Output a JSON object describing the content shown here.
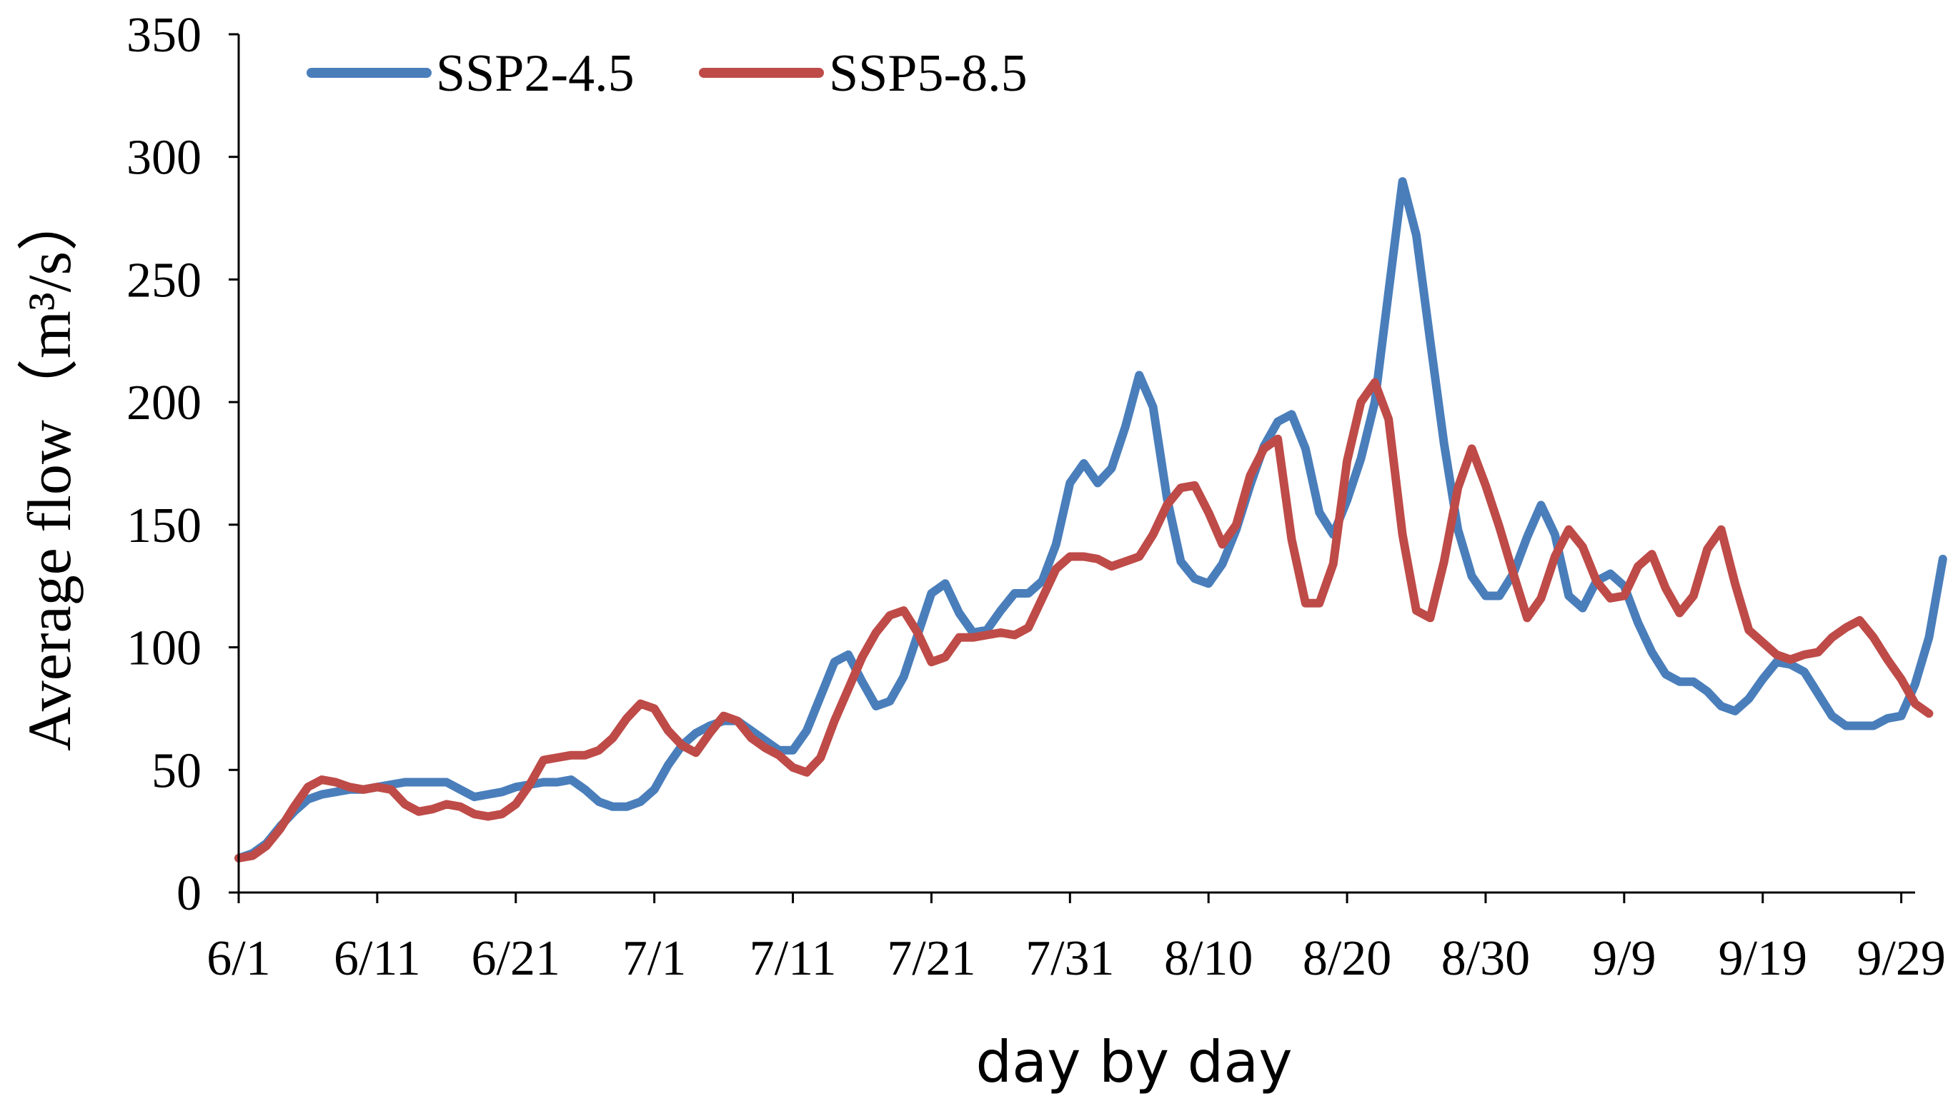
{
  "chart_data": {
    "type": "line",
    "title": "",
    "xlabel": "day by day",
    "ylabel": "Average flow（m³/s）",
    "ylim": [
      0,
      350
    ],
    "yticks": [
      0,
      50,
      100,
      150,
      200,
      250,
      300,
      350
    ],
    "xlim": [
      0,
      121
    ],
    "xticks": [
      {
        "day": 0,
        "label": "6/1"
      },
      {
        "day": 10,
        "label": "6/11"
      },
      {
        "day": 20,
        "label": "6/21"
      },
      {
        "day": 30,
        "label": "7/1"
      },
      {
        "day": 40,
        "label": "7/11"
      },
      {
        "day": 50,
        "label": "7/21"
      },
      {
        "day": 60,
        "label": "7/31"
      },
      {
        "day": 70,
        "label": "8/10"
      },
      {
        "day": 80,
        "label": "8/20"
      },
      {
        "day": 90,
        "label": "8/30"
      },
      {
        "day": 100,
        "label": "9/9"
      },
      {
        "day": 110,
        "label": "9/19"
      },
      {
        "day": 120,
        "label": "9/29"
      }
    ],
    "grid": false,
    "legend_position": "top-left",
    "series": [
      {
        "name": "SSP2-4.5",
        "color": "#4a7ebb",
        "values": [
          14,
          16,
          20,
          27,
          33,
          38,
          40,
          41,
          42,
          42,
          43,
          44,
          45,
          45,
          45,
          45,
          42,
          39,
          40,
          41,
          43,
          44,
          45,
          45,
          46,
          42,
          37,
          35,
          35,
          37,
          42,
          52,
          60,
          65,
          68,
          70,
          70,
          66,
          62,
          58,
          58,
          66,
          80,
          94,
          97,
          86,
          76,
          78,
          88,
          105,
          122,
          126,
          114,
          106,
          107,
          115,
          122,
          122,
          127,
          142,
          167,
          175,
          167,
          173,
          190,
          211,
          198,
          161,
          135,
          128,
          126,
          134,
          148,
          166,
          182,
          192,
          195,
          181,
          155,
          146,
          160,
          177,
          200,
          245,
          290,
          268,
          225,
          183,
          148,
          129,
          121,
          121,
          130,
          145,
          158,
          146,
          121,
          116,
          127,
          130,
          125,
          110,
          98,
          89,
          86,
          86,
          82,
          76,
          74,
          79,
          87,
          94,
          93,
          90,
          81,
          72,
          68,
          68,
          68,
          71,
          72,
          85,
          104,
          136
        ]
      },
      {
        "name": "SSP5-8.5",
        "color": "#be4b48",
        "values": [
          14,
          15,
          19,
          26,
          35,
          43,
          46,
          45,
          43,
          42,
          43,
          42,
          36,
          33,
          34,
          36,
          35,
          32,
          31,
          32,
          36,
          44,
          54,
          55,
          56,
          56,
          58,
          63,
          71,
          77,
          75,
          66,
          60,
          57,
          65,
          72,
          70,
          63,
          59,
          56,
          51,
          49,
          55,
          70,
          83,
          96,
          106,
          113,
          115,
          106,
          94,
          96,
          104,
          104,
          105,
          106,
          105,
          108,
          120,
          132,
          137,
          137,
          136,
          133,
          135,
          137,
          146,
          158,
          165,
          166,
          155,
          142,
          150,
          170,
          181,
          185,
          144,
          118,
          118,
          134,
          176,
          200,
          208,
          193,
          146,
          115,
          112,
          135,
          165,
          181,
          166,
          149,
          130,
          112,
          120,
          137,
          148,
          141,
          127,
          120,
          121,
          133,
          138,
          124,
          114,
          121,
          140,
          148,
          126,
          107,
          102,
          97,
          95,
          97,
          98,
          104,
          108,
          111,
          104,
          95,
          87,
          77,
          73
        ]
      }
    ]
  }
}
